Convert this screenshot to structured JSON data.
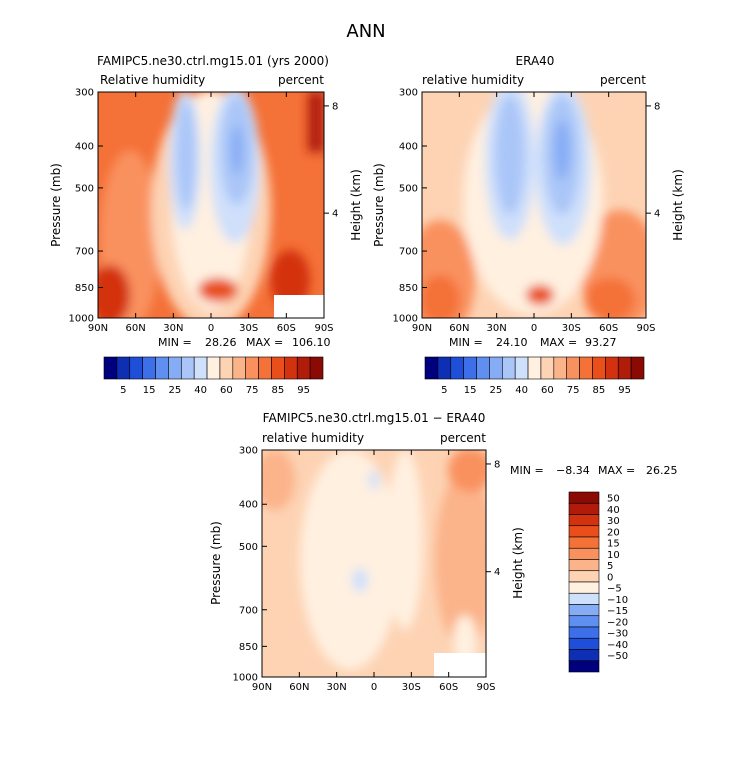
{
  "season_title": "ANN",
  "chart_data": [
    {
      "type": "heatmap",
      "title": "FAMIPC5.ne30.ctrl.mg15.01 (yrs 2000)",
      "variable": "Relative humidity",
      "units": "percent",
      "ylabel": "Pressure (mb)",
      "y2label": "Height (km)",
      "x_ticks": [
        "90N",
        "60N",
        "30N",
        "0",
        "30S",
        "60S",
        "90S"
      ],
      "y_ticks": [
        "300",
        "400",
        "500",
        "700",
        "850",
        "1000"
      ],
      "y2_ticks": [
        "8",
        "4"
      ],
      "min_label": "MIN =",
      "min": "28.26",
      "max_label": "MAX =",
      "max": "106.10",
      "colorbar_labels": [
        "5",
        "15",
        "25",
        "40",
        "60",
        "75",
        "85",
        "95"
      ],
      "colorbar_colors": [
        "#00007f",
        "#0d2fb3",
        "#1f4fd9",
        "#3d70e8",
        "#5f8ff0",
        "#86acf5",
        "#aac6f8",
        "#cfe0fb",
        "#fff0e0",
        "#fdd3b4",
        "#fbb38a",
        "#f9915f",
        "#f47138",
        "#ea4f1b",
        "#d3320f",
        "#b01b0a",
        "#8b0a04"
      ]
    },
    {
      "type": "heatmap",
      "title": "ERA40",
      "variable": "relative humidity",
      "units": "percent",
      "ylabel": "Pressure (mb)",
      "y2label": "Height (km)",
      "x_ticks": [
        "90N",
        "60N",
        "30N",
        "0",
        "30S",
        "60S",
        "90S"
      ],
      "y_ticks": [
        "300",
        "400",
        "500",
        "700",
        "850",
        "1000"
      ],
      "y2_ticks": [
        "8",
        "4"
      ],
      "min_label": "MIN =",
      "min": "24.10",
      "max_label": "MAX =",
      "max": "93.27",
      "colorbar_labels": [
        "5",
        "15",
        "25",
        "40",
        "60",
        "75",
        "85",
        "95"
      ],
      "colorbar_colors": [
        "#00007f",
        "#0d2fb3",
        "#1f4fd9",
        "#3d70e8",
        "#5f8ff0",
        "#86acf5",
        "#aac6f8",
        "#cfe0fb",
        "#fff0e0",
        "#fdd3b4",
        "#fbb38a",
        "#f9915f",
        "#f47138",
        "#ea4f1b",
        "#d3320f",
        "#b01b0a",
        "#8b0a04"
      ]
    },
    {
      "type": "heatmap",
      "title": "FAMIPC5.ne30.ctrl.mg15.01 − ERA40",
      "variable": "relative humidity",
      "units": "percent",
      "ylabel": "Pressure (mb)",
      "y2label": "Height (km)",
      "x_ticks": [
        "90N",
        "60N",
        "30N",
        "0",
        "30S",
        "60S",
        "90S"
      ],
      "y_ticks": [
        "300",
        "400",
        "500",
        "700",
        "850",
        "1000"
      ],
      "y2_ticks": [
        "8",
        "4"
      ],
      "min_label": "MIN =",
      "min": "−8.34",
      "max_label": "MAX =",
      "max": "26.25",
      "colorbar_labels": [
        "50",
        "40",
        "30",
        "20",
        "15",
        "10",
        "5",
        "0",
        "−5",
        "−10",
        "−15",
        "−20",
        "−30",
        "−40",
        "−50"
      ],
      "colorbar_colors": [
        "#8b0a04",
        "#b01b0a",
        "#d3320f",
        "#ea4f1b",
        "#f47138",
        "#f9915f",
        "#fbb38a",
        "#fdd3b4",
        "#fff0e0",
        "#cfe0fb",
        "#86acf5",
        "#5f8ff0",
        "#3d70e8",
        "#1f4fd9",
        "#0d2fb3",
        "#00007f"
      ]
    }
  ]
}
